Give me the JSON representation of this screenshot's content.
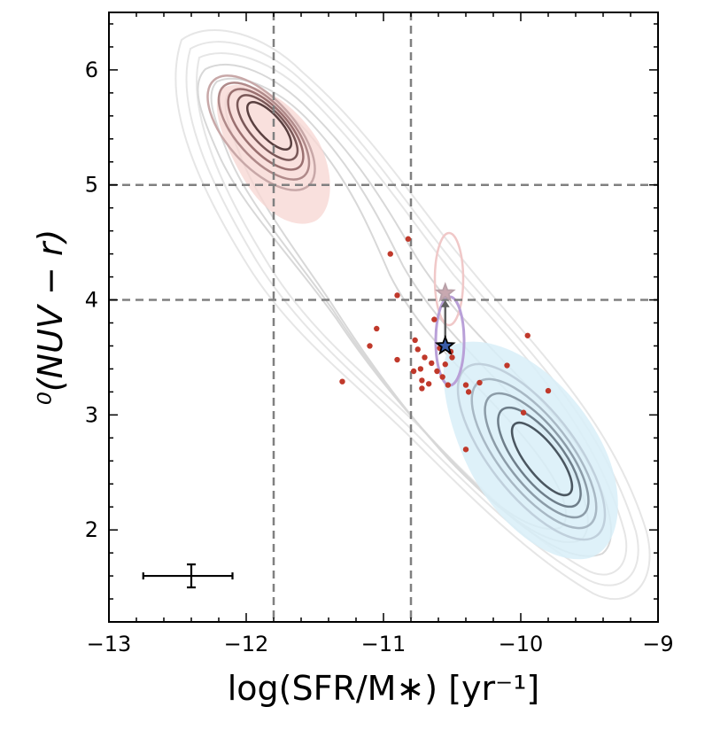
{
  "chart_data": {
    "type": "scatter",
    "title": "",
    "xlabel": "log(SFR/M∗) [yr⁻¹]",
    "ylabel": "⁰(NUV − r)",
    "xlim": [
      -13,
      -9
    ],
    "ylim": [
      1.2,
      6.5
    ],
    "x_ticks": [
      -13,
      -12,
      -11,
      -10,
      -9
    ],
    "x_tick_labels": [
      "−13",
      "−12",
      "−11",
      "−10",
      "−9"
    ],
    "y_ticks": [
      2,
      3,
      4,
      5,
      6
    ],
    "y_tick_labels": [
      "2",
      "3",
      "4",
      "5",
      "6"
    ],
    "grid": false,
    "vertical_dashed_lines": [
      -11.8,
      -10.8
    ],
    "horizontal_dashed_lines": [
      4.0,
      5.0
    ],
    "points": [
      {
        "x": -11.3,
        "y": 3.29
      },
      {
        "x": -11.1,
        "y": 3.6
      },
      {
        "x": -11.05,
        "y": 3.75
      },
      {
        "x": -10.95,
        "y": 4.4
      },
      {
        "x": -10.9,
        "y": 4.04
      },
      {
        "x": -10.9,
        "y": 3.48
      },
      {
        "x": -10.82,
        "y": 4.53
      },
      {
        "x": -10.78,
        "y": 3.38
      },
      {
        "x": -10.77,
        "y": 3.65
      },
      {
        "x": -10.75,
        "y": 3.57
      },
      {
        "x": -10.73,
        "y": 3.4
      },
      {
        "x": -10.72,
        "y": 3.3
      },
      {
        "x": -10.72,
        "y": 3.23
      },
      {
        "x": -10.7,
        "y": 3.5
      },
      {
        "x": -10.67,
        "y": 3.27
      },
      {
        "x": -10.65,
        "y": 3.45
      },
      {
        "x": -10.63,
        "y": 3.83
      },
      {
        "x": -10.61,
        "y": 3.38
      },
      {
        "x": -10.59,
        "y": 3.58
      },
      {
        "x": -10.57,
        "y": 3.33
      },
      {
        "x": -10.55,
        "y": 3.44
      },
      {
        "x": -10.53,
        "y": 3.26
      },
      {
        "x": -10.51,
        "y": 3.55
      },
      {
        "x": -10.5,
        "y": 3.5
      },
      {
        "x": -10.4,
        "y": 3.26
      },
      {
        "x": -10.38,
        "y": 3.2
      },
      {
        "x": -10.4,
        "y": 2.7
      },
      {
        "x": -10.3,
        "y": 3.28
      },
      {
        "x": -10.1,
        "y": 3.43
      },
      {
        "x": -9.98,
        "y": 3.02
      },
      {
        "x": -9.95,
        "y": 3.69
      },
      {
        "x": -9.8,
        "y": 3.21
      }
    ],
    "star_markers": [
      {
        "x": -10.55,
        "y": 3.6,
        "color": "#3a5ca8"
      },
      {
        "x": -10.55,
        "y": 4.06,
        "color": "#c8a8b0"
      }
    ],
    "error_bar": {
      "x": -12.4,
      "y": 1.6,
      "xerr": [
        0.35,
        0.3
      ],
      "yerr": 0.1
    },
    "colors": {
      "points": "#c0392b",
      "red_sequence_fill": "#f8d8d4",
      "blue_cloud_fill": "#d8eef8",
      "contours": "#8a8a8a",
      "dashed_lines": "#808080",
      "ellipse_purple": "#b9a0d8",
      "ellipse_pink": "#f0c8c8"
    }
  }
}
